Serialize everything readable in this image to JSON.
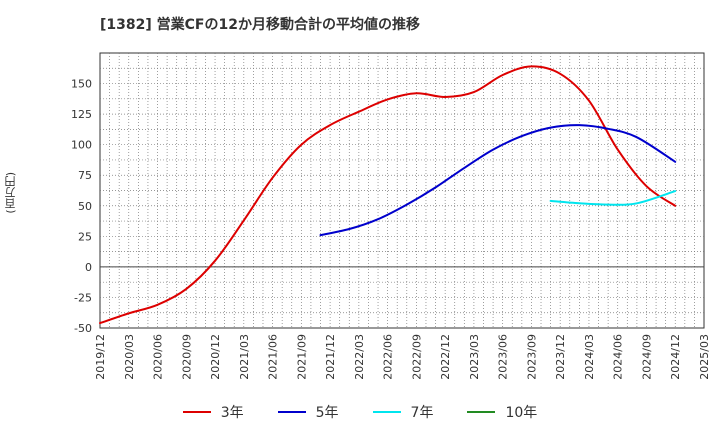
{
  "title": "[1382]  営業CFの12か月移動合計の平均値の推移",
  "ylabel": "(百万円)",
  "chart_data": {
    "type": "line",
    "title": "[1382]  営業CFの12か月移動合計の平均値の推移",
    "ylabel": "(百万円)",
    "xlabel": "",
    "ylim": [
      -50,
      175
    ],
    "yticks": [
      -50,
      -25,
      0,
      25,
      50,
      75,
      100,
      125,
      150
    ],
    "xlim": [
      "2019-12",
      "2025-03"
    ],
    "xticks": [
      "2019/12",
      "2020/03",
      "2020/06",
      "2020/09",
      "2020/12",
      "2021/03",
      "2021/06",
      "2021/09",
      "2021/12",
      "2022/03",
      "2022/06",
      "2022/09",
      "2022/12",
      "2023/03",
      "2023/06",
      "2023/09",
      "2023/12",
      "2024/03",
      "2024/06",
      "2024/09",
      "2024/12",
      "2025/03"
    ],
    "grid": true,
    "legend_position": "bottom",
    "series": [
      {
        "name": "3年",
        "color": "#dd0000",
        "points": [
          [
            "2019-12",
            -46
          ],
          [
            "2020-03",
            -38
          ],
          [
            "2020-06",
            -31
          ],
          [
            "2020-09",
            -18
          ],
          [
            "2020-12",
            5
          ],
          [
            "2021-03",
            38
          ],
          [
            "2021-06",
            73
          ],
          [
            "2021-09",
            100
          ],
          [
            "2021-12",
            116
          ],
          [
            "2022-03",
            127
          ],
          [
            "2022-06",
            137
          ],
          [
            "2022-09",
            142
          ],
          [
            "2022-12",
            139
          ],
          [
            "2023-03",
            143
          ],
          [
            "2023-06",
            157
          ],
          [
            "2023-09",
            164
          ],
          [
            "2023-12",
            158
          ],
          [
            "2024-03",
            136
          ],
          [
            "2024-06",
            96
          ],
          [
            "2024-09",
            66
          ],
          [
            "2024-12",
            50
          ]
        ]
      },
      {
        "name": "5年",
        "color": "#0000cc",
        "points": [
          [
            "2021-11",
            26
          ],
          [
            "2022-02",
            31
          ],
          [
            "2022-05",
            39
          ],
          [
            "2022-08",
            51
          ],
          [
            "2022-11",
            65
          ],
          [
            "2023-02",
            81
          ],
          [
            "2023-05",
            96
          ],
          [
            "2023-08",
            107
          ],
          [
            "2023-11",
            114
          ],
          [
            "2024-02",
            116
          ],
          [
            "2024-05",
            113
          ],
          [
            "2024-08",
            106
          ],
          [
            "2024-12",
            86
          ]
        ]
      },
      {
        "name": "7年",
        "color": "#00e5ee",
        "points": [
          [
            "2023-11",
            54
          ],
          [
            "2024-02",
            52
          ],
          [
            "2024-05",
            51
          ],
          [
            "2024-08",
            52
          ],
          [
            "2024-12",
            62
          ]
        ]
      },
      {
        "name": "10年",
        "color": "#228b22",
        "points": []
      }
    ]
  }
}
